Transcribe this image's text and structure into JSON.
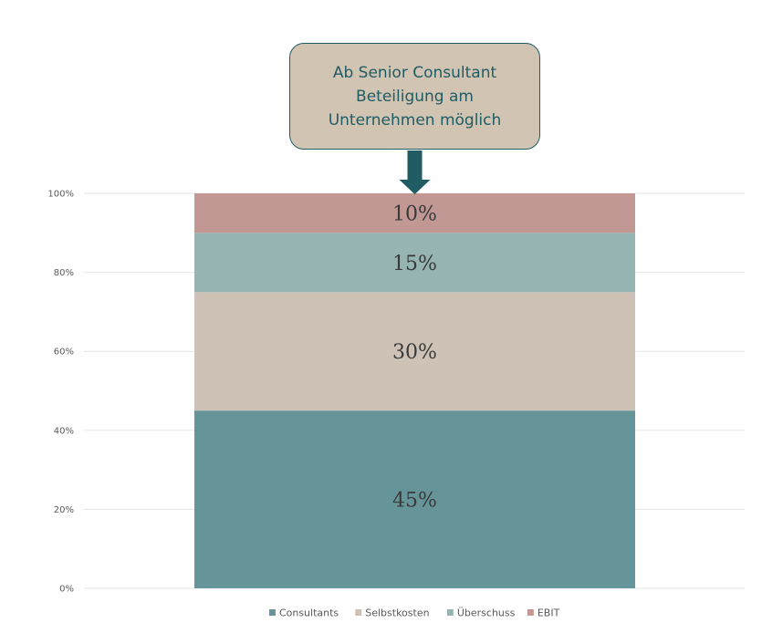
{
  "callout": {
    "lines": [
      "Ab Senior Consultant",
      "Beteiligung am",
      "Unternehmen möglich"
    ],
    "fill_color": "#d2c4b2",
    "border_color": "#1f5c63",
    "arrow_color": "#1f5c63"
  },
  "chart_data": {
    "type": "bar",
    "stacked": true,
    "percent_stacked": true,
    "title": "",
    "xlabel": "",
    "ylabel": "",
    "ylim": [
      0,
      100
    ],
    "yticks": [
      0,
      20,
      40,
      60,
      80,
      100
    ],
    "ytick_labels": [
      "0%",
      "20%",
      "40%",
      "60%",
      "80%",
      "100%"
    ],
    "grid": true,
    "legend_position": "bottom",
    "categories": [
      ""
    ],
    "series": [
      {
        "name": "Consultants",
        "values": [
          45
        ],
        "label": "45%",
        "color": "#669599"
      },
      {
        "name": "Selbstkosten",
        "values": [
          30
        ],
        "label": "30%",
        "color": "#cdc2b5"
      },
      {
        "name": "Überschuss",
        "values": [
          15
        ],
        "label": "15%",
        "color": "#96b4b1"
      },
      {
        "name": "EBIT",
        "values": [
          10
        ],
        "label": "10%",
        "color": "#c19894"
      }
    ]
  }
}
